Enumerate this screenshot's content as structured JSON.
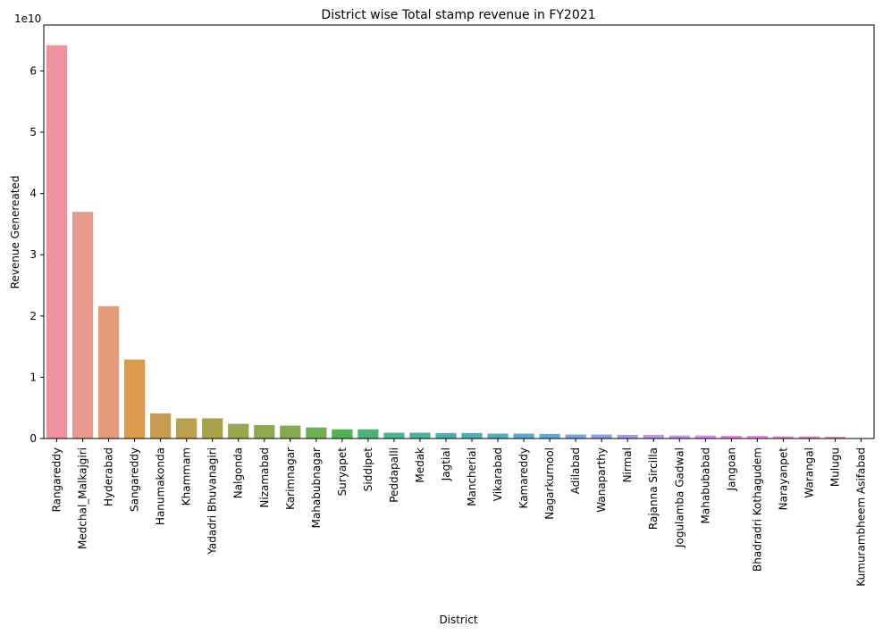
{
  "chart_data": {
    "type": "bar",
    "title": "District wise Total stamp revenue in FY2021",
    "xlabel": "District",
    "ylabel": "Revenue Genereated",
    "y_offset_label": "1e10",
    "ylim": [
      0,
      6.75
    ],
    "yticks": [
      0,
      1,
      2,
      3,
      4,
      5,
      6
    ],
    "grid": false,
    "categories": [
      "Rangareddy",
      "Medchal_Malkajgiri",
      "Hyderabad",
      "Sangareddy",
      "Hanumakonda",
      "Khammam",
      "Yadadri Bhuvanagiri",
      "Nalgonda",
      "Nizamabad",
      "Karimnagar",
      "Mahabubnagar",
      "Suryapet",
      "Siddipet",
      "Peddapalli",
      "Medak",
      "Jagtial",
      "Mancherial",
      "Vikarabad",
      "Kamareddy",
      "Nagarkurnool",
      "Adilabad",
      "Wanaparthy",
      "Nirmal",
      "Rajanna Sircilla",
      "Jogulamba Gadwal",
      "Mahabubabad",
      "Jangoan",
      "Bhadradri Kothagudem",
      "Narayanpet",
      "Warangal",
      "Mulugu",
      "Kumurambheem Asifabad"
    ],
    "values": [
      6.42,
      3.7,
      2.16,
      1.29,
      0.41,
      0.33,
      0.33,
      0.24,
      0.22,
      0.21,
      0.18,
      0.15,
      0.15,
      0.095,
      0.095,
      0.09,
      0.09,
      0.08,
      0.08,
      0.075,
      0.065,
      0.065,
      0.06,
      0.06,
      0.05,
      0.05,
      0.045,
      0.045,
      0.035,
      0.035,
      0.03,
      0.005
    ],
    "colors": [
      "#ed939f",
      "#e8998e",
      "#e59a7a",
      "#dc9b4f",
      "#c89c4f",
      "#b8a04c",
      "#a8a24a",
      "#9aa64d",
      "#90a84f",
      "#85aa51",
      "#6eae55",
      "#4fb14f",
      "#4db27a",
      "#4db294",
      "#4cb1a1",
      "#4bb0aa",
      "#4dafb6",
      "#51adc2",
      "#56abcc",
      "#5faad5",
      "#7aa5dd",
      "#8ea1e3",
      "#a59be8",
      "#b896ea",
      "#c592ea",
      "#d38ee6",
      "#de8bdf",
      "#e68bd6",
      "#ea8ccb",
      "#ec8dbf",
      "#ed8fb3",
      "#ee90a8"
    ]
  }
}
